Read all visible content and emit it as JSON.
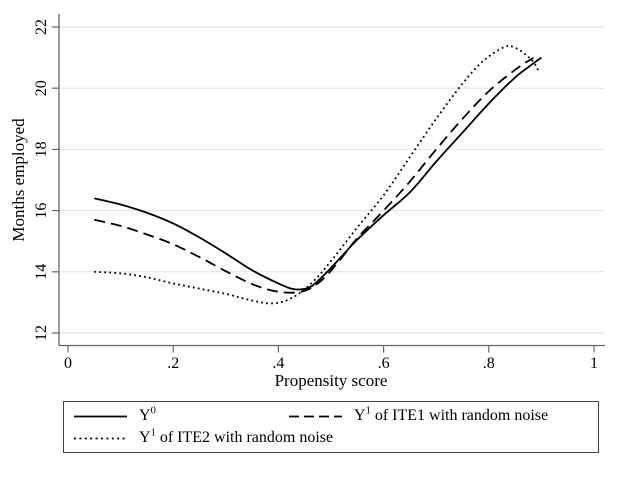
{
  "figure": {
    "background": "#ffffff"
  },
  "colors": {
    "line": "#000000",
    "grid": "#e2e2e2",
    "axis": "#666666",
    "text": "#000000",
    "legend_border": "#444444"
  },
  "chart_data": {
    "type": "line",
    "title": "",
    "xlabel": "Propensity score",
    "ylabel": "Months employed",
    "xlim": [
      0,
      1
    ],
    "ylim": [
      12,
      22
    ],
    "xtick_values": [
      0,
      0.2,
      0.4,
      0.6,
      0.8,
      1
    ],
    "xtick_labels": [
      "0",
      ".2",
      ".4",
      ".6",
      ".8",
      "1"
    ],
    "ytick_values": [
      12,
      14,
      16,
      18,
      20,
      22
    ],
    "ytick_labels": [
      "12",
      "14",
      "16",
      "18",
      "20",
      "22"
    ],
    "grid": "horizontal-only",
    "legend_position": "below-plot",
    "series": [
      {
        "id": "y0",
        "label": {
          "base": "Y",
          "sup": "0",
          "rest": ""
        },
        "line_style": "solid",
        "color": "#000000",
        "x": [
          0.05,
          0.1,
          0.15,
          0.2,
          0.25,
          0.3,
          0.35,
          0.4,
          0.43,
          0.46,
          0.49,
          0.52,
          0.55,
          0.6,
          0.65,
          0.7,
          0.75,
          0.8,
          0.85,
          0.88,
          0.9
        ],
        "y": [
          16.4,
          16.2,
          15.93,
          15.58,
          15.12,
          14.6,
          14.05,
          13.62,
          13.43,
          13.5,
          13.95,
          14.5,
          15.05,
          15.85,
          16.6,
          17.6,
          18.55,
          19.5,
          20.35,
          20.75,
          21.0
        ]
      },
      {
        "id": "y1-ite1",
        "label": {
          "base": "Y",
          "sup": "1",
          "rest": " of ITE1 with random noise"
        },
        "line_style": "dashed",
        "color": "#000000",
        "x": [
          0.05,
          0.1,
          0.15,
          0.2,
          0.25,
          0.3,
          0.35,
          0.39,
          0.43,
          0.46,
          0.49,
          0.52,
          0.55,
          0.6,
          0.65,
          0.7,
          0.75,
          0.8,
          0.85,
          0.885
        ],
        "y": [
          15.7,
          15.5,
          15.22,
          14.9,
          14.48,
          14.02,
          13.6,
          13.38,
          13.32,
          13.45,
          13.85,
          14.45,
          15.1,
          16.0,
          16.95,
          18.0,
          19.0,
          19.9,
          20.6,
          21.0
        ]
      },
      {
        "id": "y1-ite2",
        "label": {
          "base": "Y",
          "sup": "1",
          "rest": " of ITE2 with random noise"
        },
        "line_style": "dotted",
        "color": "#000000",
        "x": [
          0.05,
          0.1,
          0.15,
          0.2,
          0.25,
          0.3,
          0.34,
          0.38,
          0.41,
          0.44,
          0.47,
          0.5,
          0.55,
          0.6,
          0.65,
          0.7,
          0.75,
          0.79,
          0.83,
          0.85,
          0.87,
          0.885,
          0.895
        ],
        "y": [
          14.0,
          13.95,
          13.82,
          13.62,
          13.45,
          13.28,
          13.1,
          12.97,
          13.03,
          13.3,
          13.75,
          14.35,
          15.45,
          16.5,
          17.75,
          19.0,
          20.15,
          20.9,
          21.35,
          21.32,
          21.1,
          20.85,
          20.55
        ]
      }
    ]
  }
}
